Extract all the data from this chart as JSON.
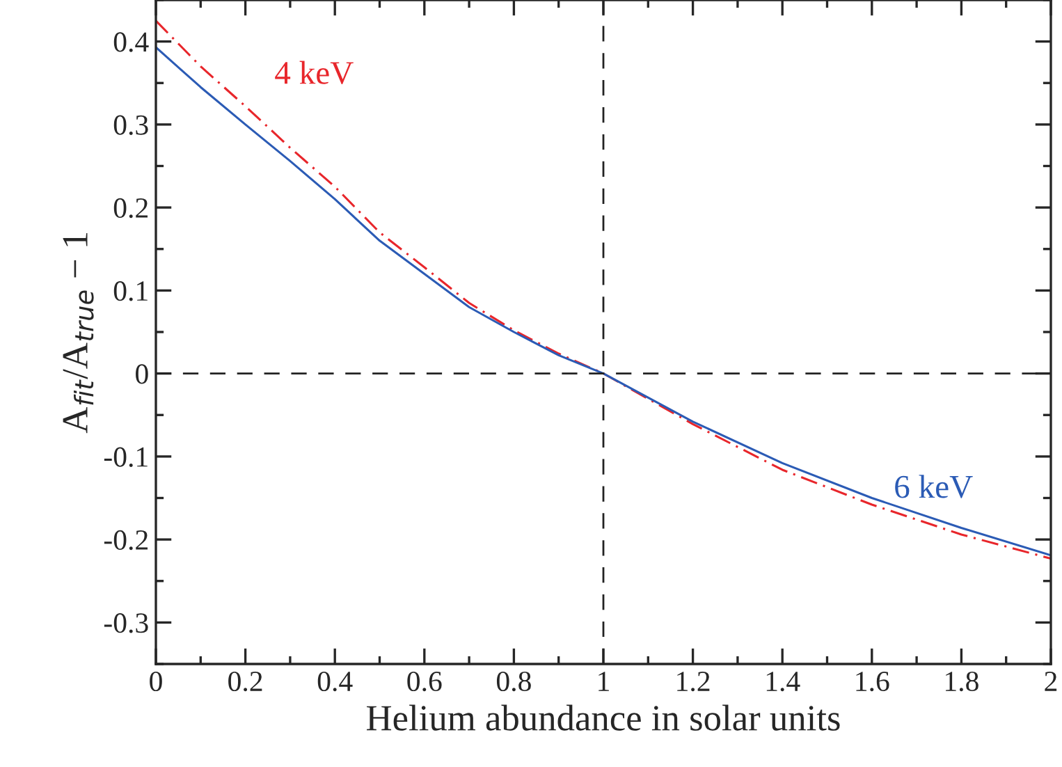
{
  "chart_data": {
    "type": "line",
    "xlabel": "Helium abundance in solar units",
    "ylabel": "A$_{fit}$/A$_{true}$ − 1",
    "x": [
      0,
      0.1,
      0.2,
      0.3,
      0.4,
      0.5,
      0.6,
      0.7,
      0.8,
      0.9,
      1,
      1.2,
      1.4,
      1.6,
      1.8,
      2
    ],
    "series": [
      {
        "name": "4 keV",
        "color": "#e8262b",
        "line_style": "dashdot",
        "values": [
          0.425,
          0.37,
          0.322,
          0.272,
          0.225,
          0.17,
          0.128,
          0.085,
          0.052,
          0.024,
          0,
          -0.061,
          -0.116,
          -0.158,
          -0.194,
          -0.223
        ]
      },
      {
        "name": "6 keV",
        "color": "#2b5bb5",
        "line_style": "solid",
        "values": [
          0.393,
          0.345,
          0.3,
          0.256,
          0.21,
          0.16,
          0.12,
          0.08,
          0.05,
          0.022,
          0,
          -0.058,
          -0.108,
          -0.15,
          -0.186,
          -0.219
        ]
      }
    ],
    "xlim": [
      0,
      2
    ],
    "xticks": [
      0,
      0.2,
      0.4,
      0.6,
      0.8,
      1,
      1.2,
      1.4,
      1.6,
      1.8,
      2
    ],
    "ylim": [
      -0.35,
      0.45
    ],
    "yticks": [
      -0.3,
      -0.2,
      -0.1,
      0,
      0.1,
      0.2,
      0.3,
      0.4
    ],
    "ref_lines": [
      {
        "axis": "x",
        "value": 1,
        "color": "#222222",
        "line_style": "dashed"
      },
      {
        "axis": "y",
        "value": 0,
        "color": "#222222",
        "line_style": "dashed"
      }
    ],
    "grid": false,
    "legend": false,
    "marker": "none"
  }
}
